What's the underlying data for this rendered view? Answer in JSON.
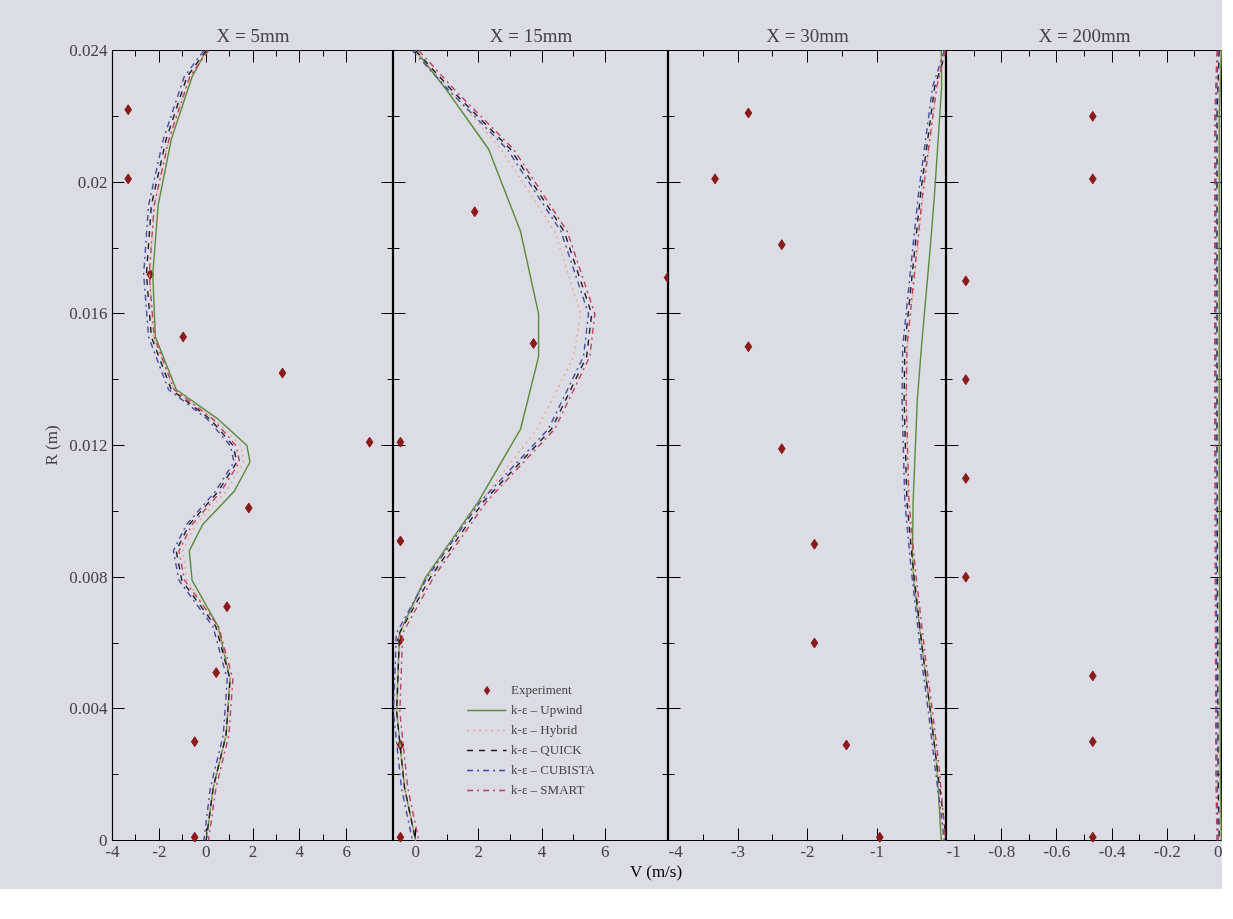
{
  "chart_data": [
    {
      "type": "line",
      "title": "X = 5mm",
      "ylabel": "R (m)",
      "xlim": [
        -4,
        8
      ],
      "xticks": [
        -4,
        -2,
        0,
        2,
        4,
        6
      ],
      "ylim": [
        0,
        0.024
      ],
      "yticks": [
        0,
        0.004,
        0.008,
        0.012,
        0.016,
        0.02,
        0.024
      ],
      "grid": false,
      "legend": false,
      "series": [
        {
          "type": "scatter",
          "marker": "diamond",
          "color": "#8b1a1a",
          "x": [
            -3.33,
            -3.33,
            -2.39,
            -0.98,
            3.26,
            6.98,
            1.82,
            0.89,
            0.43,
            -0.49,
            -0.49
          ],
          "values": [
            0.0222,
            0.0201,
            0.0172,
            0.0153,
            0.0142,
            0.0121,
            0.0101,
            0.0071,
            0.0051,
            0.003,
            0.0001
          ]
        },
        {
          "line_style": "solid",
          "color": "#5a8a3a",
          "x": [
            0,
            -0.6,
            -1.49,
            -2.05,
            -2.28,
            -2.17,
            -1.28,
            0.51,
            1.74,
            1.87,
            1.19,
            -0.15,
            -0.72,
            -0.6,
            0.51,
            1.02,
            0.85,
            0.3,
            0
          ],
          "values": [
            0.024,
            0.0232,
            0.0213,
            0.0193,
            0.0172,
            0.0153,
            0.0137,
            0.0128,
            0.012,
            0.0115,
            0.0106,
            0.0096,
            0.0088,
            0.0079,
            0.0065,
            0.0049,
            0.0032,
            0.0016,
            0
          ]
        },
        {
          "line_style": "dotted",
          "color": "#e8a890",
          "x": [
            0,
            -0.7,
            -1.6,
            -2.2,
            -2.42,
            -2.26,
            -1.38,
            0.35,
            1.48,
            1.6,
            0.85,
            -0.45,
            -1.0,
            -0.82,
            0.46,
            1.02,
            0.85,
            0.3,
            0
          ],
          "values": [
            0.024,
            0.0232,
            0.0213,
            0.0193,
            0.0172,
            0.0153,
            0.0137,
            0.0128,
            0.012,
            0.0115,
            0.0106,
            0.0096,
            0.0088,
            0.0079,
            0.0065,
            0.0049,
            0.0032,
            0.0016,
            0
          ]
        },
        {
          "line_style": "dashed",
          "color": "#202020",
          "x": [
            0,
            -0.82,
            -1.71,
            -2.34,
            -2.55,
            -2.34,
            -1.49,
            0.17,
            1.15,
            1.31,
            0.51,
            -0.72,
            -1.28,
            -1.04,
            0.41,
            1.02,
            0.85,
            0.3,
            0
          ],
          "values": [
            0.024,
            0.0232,
            0.0213,
            0.0193,
            0.0172,
            0.0153,
            0.0137,
            0.0128,
            0.012,
            0.0115,
            0.0106,
            0.0096,
            0.0088,
            0.0079,
            0.0065,
            0.0049,
            0.0032,
            0.0016,
            0
          ]
        },
        {
          "line_style": "dashdot",
          "color": "#4a4aa8",
          "x": [
            -0.1,
            -0.94,
            -1.83,
            -2.46,
            -2.67,
            -2.46,
            -1.61,
            0.05,
            1.03,
            1.19,
            0.39,
            -0.84,
            -1.4,
            -1.16,
            0.29,
            0.9,
            0.73,
            0.18,
            -0.1
          ],
          "values": [
            0.024,
            0.0232,
            0.0213,
            0.0193,
            0.0172,
            0.0153,
            0.0137,
            0.0128,
            0.012,
            0.0115,
            0.0106,
            0.0096,
            0.0088,
            0.0079,
            0.0065,
            0.0049,
            0.0032,
            0.0016,
            0
          ]
        },
        {
          "line_style": "dashdot",
          "color": "#c04060",
          "x": [
            0.1,
            -0.7,
            -1.59,
            -2.22,
            -2.43,
            -2.22,
            -1.37,
            0.29,
            1.27,
            1.43,
            0.63,
            -0.6,
            -1.16,
            -0.92,
            0.53,
            1.14,
            0.97,
            0.42,
            0.1
          ],
          "values": [
            0.024,
            0.0232,
            0.0213,
            0.0193,
            0.0172,
            0.0153,
            0.0137,
            0.0128,
            0.012,
            0.0115,
            0.0106,
            0.0096,
            0.0088,
            0.0079,
            0.0065,
            0.0049,
            0.0032,
            0.0016,
            0
          ]
        }
      ]
    },
    {
      "type": "line",
      "title": "X = 15mm",
      "xlabel": "V (m/s)",
      "xlim": [
        -0.7,
        8
      ],
      "xticks": [
        0,
        2,
        4,
        6
      ],
      "ylim": [
        0,
        0.024
      ],
      "yticks": [
        0,
        0.004,
        0.008,
        0.012,
        0.016,
        0.02,
        0.024
      ],
      "tick_labels": "x",
      "grid": false,
      "legend": "bottom",
      "series": [
        {
          "name": "Experiment",
          "type": "scatter",
          "marker": "diamond",
          "color": "#8b1a1a",
          "x": [
            1.87,
            7.97,
            3.73,
            -0.48,
            -0.48,
            -0.48,
            -0.48,
            -0.48
          ],
          "values": [
            0.0191,
            0.0171,
            0.0151,
            0.0121,
            0.0091,
            0.0061,
            0.0029,
            0.0001
          ]
        },
        {
          "name": "k-ε – Upwind",
          "line_style": "solid",
          "color": "#5a8a3a",
          "x": [
            0,
            0.98,
            2.31,
            3.32,
            3.89,
            3.89,
            3.32,
            1.99,
            0.32,
            -0.51,
            -0.6,
            -0.35,
            0
          ],
          "values": [
            0.024,
            0.0228,
            0.021,
            0.0185,
            0.016,
            0.0147,
            0.0125,
            0.0103,
            0.008,
            0.0063,
            0.0039,
            0.0016,
            0
          ]
        },
        {
          "name": "k-ε – Hybrid",
          "line_style": "dotted",
          "color": "#e8a890",
          "x": [
            0,
            1.08,
            2.7,
            4.4,
            5.22,
            5.0,
            3.85,
            2.05,
            0.4,
            -0.51,
            -0.6,
            -0.35,
            0
          ],
          "values": [
            0.024,
            0.0228,
            0.021,
            0.0185,
            0.016,
            0.0147,
            0.0125,
            0.0103,
            0.008,
            0.0063,
            0.0039,
            0.0016,
            0
          ]
        },
        {
          "name": "k-ε – QUICK",
          "line_style": "dashed",
          "color": "#202020",
          "x": [
            0,
            1.14,
            3.0,
            4.7,
            5.57,
            5.41,
            4.3,
            2.15,
            0.47,
            -0.51,
            -0.6,
            -0.35,
            0
          ],
          "values": [
            0.024,
            0.0228,
            0.021,
            0.0185,
            0.016,
            0.0147,
            0.0125,
            0.0103,
            0.008,
            0.0063,
            0.0039,
            0.0016,
            0
          ]
        },
        {
          "name": "k-ε – CUBISTA",
          "line_style": "dashdot",
          "color": "#4a4aa8",
          "x": [
            -0.1,
            1.04,
            2.9,
            4.6,
            5.47,
            5.31,
            4.2,
            2.05,
            0.37,
            -0.61,
            -0.7,
            -0.45,
            -0.1
          ],
          "values": [
            0.024,
            0.0228,
            0.021,
            0.0185,
            0.016,
            0.0147,
            0.0125,
            0.0103,
            0.008,
            0.0063,
            0.0039,
            0.0016,
            0
          ]
        },
        {
          "name": "k-ε – SMART",
          "line_style": "dashdot",
          "color": "#c04060",
          "x": [
            0.1,
            1.24,
            3.1,
            4.8,
            5.67,
            5.51,
            4.4,
            2.25,
            0.57,
            -0.41,
            -0.5,
            -0.25,
            0.1
          ],
          "values": [
            0.024,
            0.0228,
            0.021,
            0.0185,
            0.016,
            0.0147,
            0.0125,
            0.0103,
            0.008,
            0.0063,
            0.0039,
            0.0016,
            0
          ]
        }
      ]
    },
    {
      "type": "line",
      "title": "X = 30mm",
      "xlim": [
        -4,
        0
      ],
      "xticks": [
        -4,
        -3,
        -2,
        -1
      ],
      "ylim": [
        0,
        0.024
      ],
      "yticks": [
        0,
        0.004,
        0.008,
        0.012,
        0.016,
        0.02,
        0.024
      ],
      "tick_labels": "x",
      "grid": false,
      "legend": false,
      "series": [
        {
          "type": "scatter",
          "marker": "diamond",
          "color": "#8b1a1a",
          "x": [
            -2.85,
            -3.33,
            -2.37,
            -2.85,
            -2.37,
            -1.9,
            -1.9,
            -1.44,
            -0.96
          ],
          "values": [
            0.0221,
            0.0201,
            0.0181,
            0.015,
            0.0119,
            0.009,
            0.006,
            0.0029,
            0.0001
          ]
        },
        {
          "line_style": "solid",
          "color": "#5a8a3a",
          "x": [
            -0.075,
            -0.07,
            -0.17,
            -0.23,
            -0.36,
            -0.42,
            -0.48,
            -0.49,
            -0.47,
            -0.33,
            -0.23,
            -0.14,
            -0.075
          ],
          "values": [
            0.024,
            0.0229,
            0.0197,
            0.0181,
            0.015,
            0.0134,
            0.0103,
            0.0087,
            0.0079,
            0.0055,
            0.0039,
            0.0023,
            0
          ]
        },
        {
          "line_style": "dotted",
          "color": "#e8a890",
          "x": [
            -0.05,
            -0.14,
            -0.33,
            -0.41,
            -0.56,
            -0.58,
            -0.55,
            -0.5,
            -0.46,
            -0.33,
            -0.23,
            -0.14,
            -0.05
          ],
          "values": [
            0.024,
            0.0229,
            0.0197,
            0.0181,
            0.015,
            0.0134,
            0.0103,
            0.0087,
            0.0079,
            0.0055,
            0.0039,
            0.0023,
            0
          ]
        },
        {
          "line_style": "dashed",
          "color": "#202020",
          "x": [
            0,
            -0.17,
            -0.37,
            -0.45,
            -0.6,
            -0.61,
            -0.57,
            -0.5,
            -0.46,
            -0.33,
            -0.23,
            -0.14,
            0
          ],
          "values": [
            0.024,
            0.0229,
            0.0197,
            0.0181,
            0.015,
            0.0134,
            0.0103,
            0.0087,
            0.0079,
            0.0055,
            0.0039,
            0.0023,
            0
          ]
        },
        {
          "line_style": "dashdot",
          "color": "#4a4aa8",
          "x": [
            -0.03,
            -0.2,
            -0.4,
            -0.48,
            -0.63,
            -0.64,
            -0.6,
            -0.53,
            -0.49,
            -0.36,
            -0.26,
            -0.17,
            -0.03
          ],
          "values": [
            0.024,
            0.0229,
            0.0197,
            0.0181,
            0.015,
            0.0134,
            0.0103,
            0.0087,
            0.0079,
            0.0055,
            0.0039,
            0.0023,
            0
          ]
        },
        {
          "line_style": "dashdot",
          "color": "#c04060",
          "x": [
            -0.015,
            -0.14,
            -0.34,
            -0.42,
            -0.57,
            -0.58,
            -0.54,
            -0.47,
            -0.43,
            -0.3,
            -0.2,
            -0.11,
            -0.015
          ],
          "values": [
            0.024,
            0.0229,
            0.0197,
            0.0181,
            0.015,
            0.0134,
            0.0103,
            0.0087,
            0.0079,
            0.0055,
            0.0039,
            0.0023,
            0
          ]
        }
      ]
    },
    {
      "type": "line",
      "title": "X = 200mm",
      "xlim": [
        -1,
        0
      ],
      "xticks": [
        -1,
        -0.8,
        -0.6,
        -0.4,
        -0.2,
        0
      ],
      "ylim": [
        0,
        0.024
      ],
      "yticks": [
        0,
        0.004,
        0.008,
        0.012,
        0.016,
        0.02,
        0.024
      ],
      "tick_labels": "x",
      "grid": false,
      "legend": false,
      "series": [
        {
          "type": "scatter",
          "marker": "diamond",
          "color": "#8b1a1a",
          "x": [
            -0.47,
            -0.47,
            -0.93,
            -0.93,
            -0.93,
            -0.93,
            -0.47,
            -0.47,
            -0.47
          ],
          "values": [
            0.022,
            0.0201,
            0.017,
            0.014,
            0.011,
            0.008,
            0.005,
            0.003,
            0.0001
          ]
        },
        {
          "line_style": "solid",
          "color": "#5a8a3a",
          "x": [
            -0.004,
            -0.012,
            -0.012,
            -0.008,
            -0.004
          ],
          "values": [
            0.024,
            0.022,
            0.012,
            0.002,
            0
          ]
        },
        {
          "line_style": "dotted",
          "color": "#e8a890",
          "x": [
            -0.008,
            -0.016,
            -0.016,
            -0.012,
            -0.008
          ],
          "values": [
            0.024,
            0.022,
            0.012,
            0.002,
            0
          ]
        },
        {
          "line_style": "dashed",
          "color": "#202020",
          "x": [
            -0.012,
            -0.02,
            -0.02,
            -0.016,
            -0.012
          ],
          "values": [
            0.024,
            0.022,
            0.012,
            0.002,
            0
          ]
        },
        {
          "line_style": "dashdot",
          "color": "#4a4aa8",
          "x": [
            -0.016,
            -0.024,
            -0.024,
            -0.02,
            -0.016
          ],
          "values": [
            0.024,
            0.022,
            0.012,
            0.002,
            0
          ]
        },
        {
          "line_style": "dashdot",
          "color": "#c04060",
          "x": [
            -0.02,
            -0.028,
            -0.028,
            -0.024,
            -0.02
          ],
          "values": [
            0.024,
            0.022,
            0.012,
            0.002,
            0
          ]
        }
      ]
    }
  ]
}
